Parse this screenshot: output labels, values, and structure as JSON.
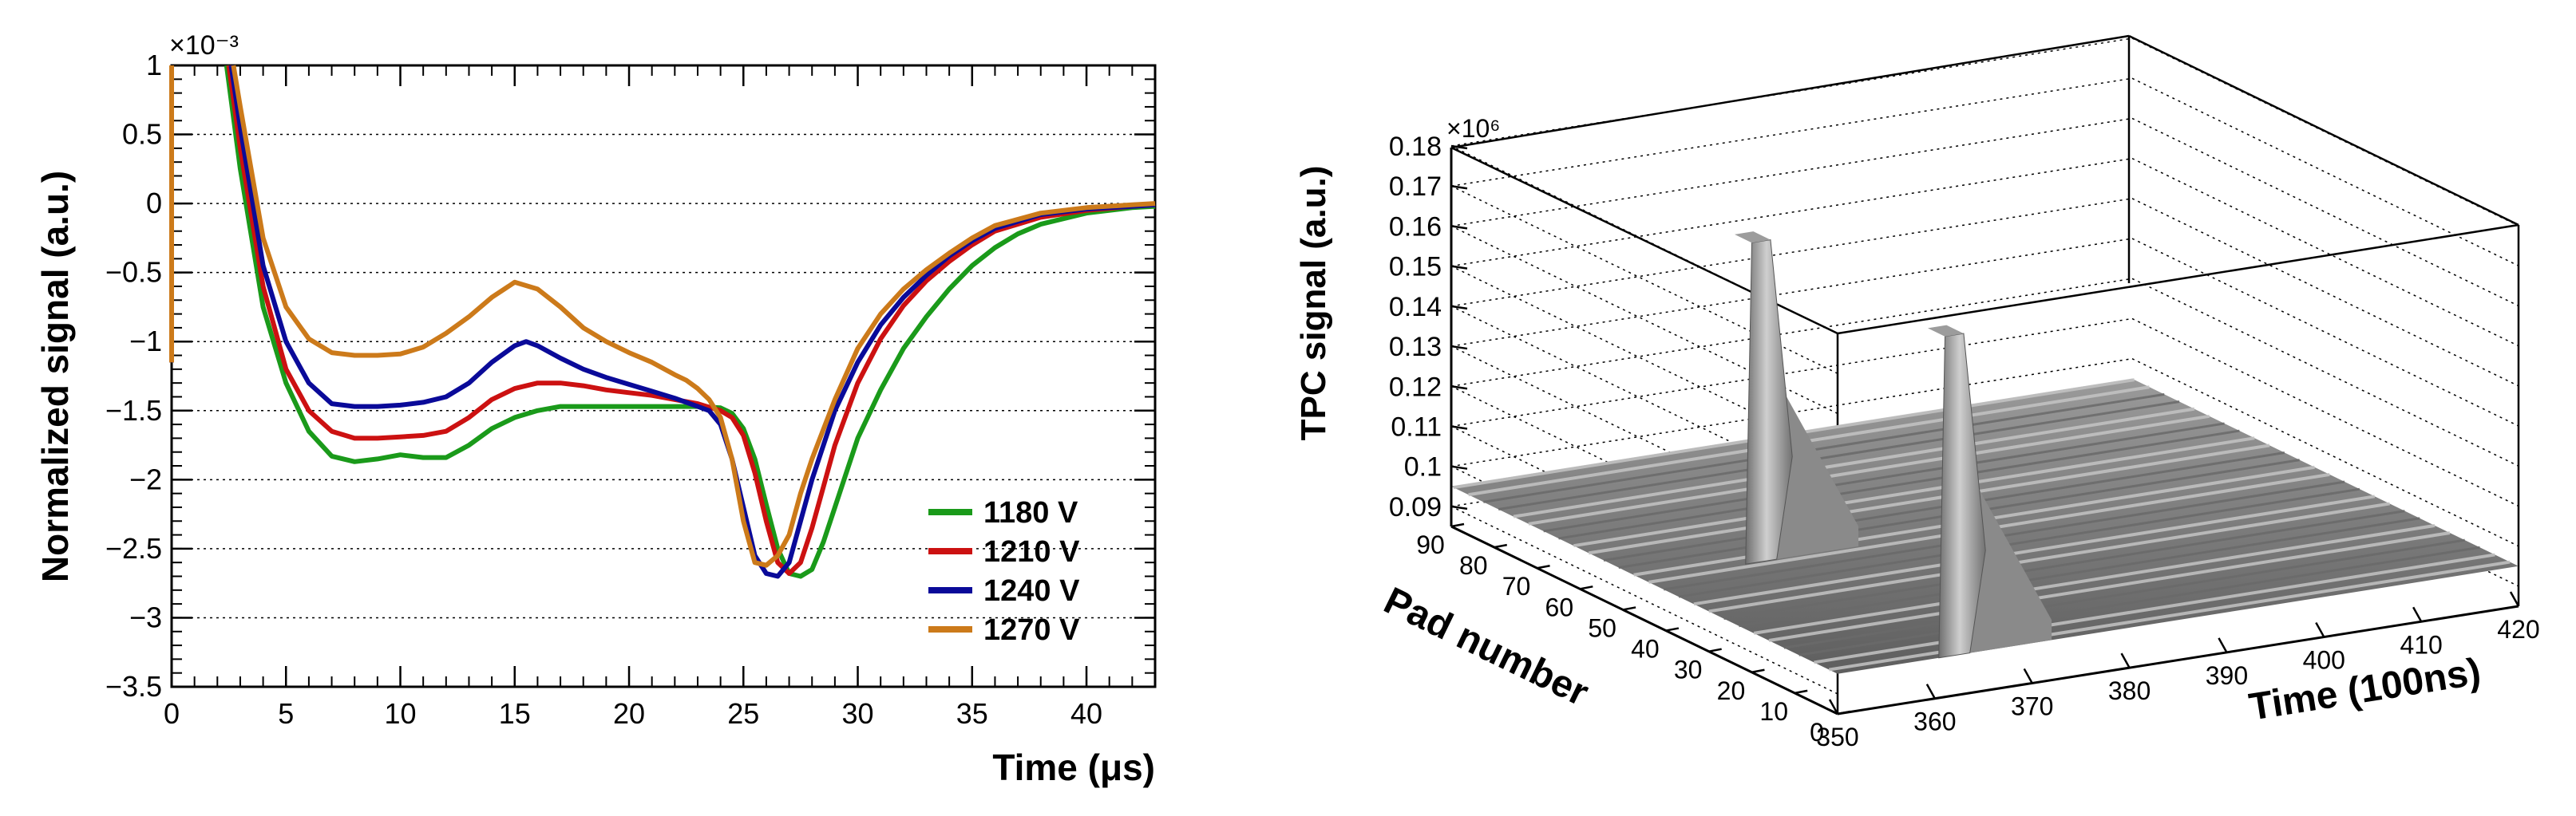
{
  "chart_data": [
    {
      "type": "line",
      "xlabel": "Time (μs)",
      "ylabel": "Normalized signal (a.u.)",
      "y_multiplier": "×10⁻³",
      "xlim": [
        0,
        43
      ],
      "ylim": [
        -3.5,
        1
      ],
      "x_ticks": [
        "0",
        "5",
        "10",
        "15",
        "20",
        "25",
        "30",
        "35",
        "40"
      ],
      "x_tick_values": [
        0,
        5,
        10,
        15,
        20,
        25,
        30,
        35,
        40
      ],
      "y_ticks": [
        "1",
        "0.5",
        "0",
        "−0.5",
        "−1",
        "−1.5",
        "−2",
        "−2.5",
        "−3",
        "−3.5"
      ],
      "y_tick_values": [
        1,
        0.5,
        0,
        -0.5,
        -1,
        -1.5,
        -2,
        -2.5,
        -3,
        -3.5
      ],
      "grid": "horizontal dotted",
      "legend_position": "bottom-right",
      "series": [
        {
          "name": "1180 V",
          "color": "#1a9a1a",
          "x": [
            2.4,
            3.0,
            4.0,
            5.0,
            6.0,
            7.0,
            8.0,
            9.0,
            10.0,
            11.0,
            12.0,
            13.0,
            14.0,
            15.0,
            16.0,
            17.0,
            18.0,
            19.0,
            20.0,
            21.0,
            22.0,
            23.0,
            24.0,
            24.5,
            25.0,
            25.5,
            26.0,
            26.5,
            27.0,
            27.5,
            28.0,
            28.5,
            29.0,
            29.5,
            30.0,
            31.0,
            32.0,
            33.0,
            34.0,
            35.0,
            36.0,
            37.0,
            38.0,
            40.0,
            42.0,
            43.0
          ],
          "y": [
            1.0,
            0.25,
            -0.75,
            -1.3,
            -1.65,
            -1.83,
            -1.87,
            -1.85,
            -1.82,
            -1.84,
            -1.84,
            -1.75,
            -1.63,
            -1.55,
            -1.5,
            -1.47,
            -1.47,
            -1.47,
            -1.47,
            -1.47,
            -1.47,
            -1.47,
            -1.48,
            -1.52,
            -1.63,
            -1.85,
            -2.18,
            -2.5,
            -2.68,
            -2.7,
            -2.65,
            -2.45,
            -2.2,
            -1.95,
            -1.7,
            -1.35,
            -1.05,
            -0.82,
            -0.62,
            -0.45,
            -0.32,
            -0.22,
            -0.15,
            -0.07,
            -0.03,
            -0.02
          ]
        },
        {
          "name": "1210 V",
          "color": "#cc1111",
          "x": [
            2.5,
            3.0,
            4.0,
            5.0,
            6.0,
            7.0,
            8.0,
            9.0,
            10.0,
            11.0,
            12.0,
            13.0,
            14.0,
            15.0,
            16.0,
            17.0,
            18.0,
            19.0,
            20.0,
            21.0,
            22.0,
            23.0,
            24.0,
            24.5,
            25.0,
            25.5,
            26.0,
            26.5,
            27.0,
            27.5,
            28.0,
            28.5,
            29.0,
            30.0,
            31.0,
            32.0,
            33.0,
            34.0,
            35.0,
            36.0,
            38.0,
            40.0,
            42.0,
            43.0
          ],
          "y": [
            1.0,
            0.4,
            -0.6,
            -1.2,
            -1.5,
            -1.65,
            -1.7,
            -1.7,
            -1.69,
            -1.68,
            -1.65,
            -1.55,
            -1.42,
            -1.34,
            -1.3,
            -1.3,
            -1.32,
            -1.35,
            -1.37,
            -1.39,
            -1.42,
            -1.45,
            -1.5,
            -1.55,
            -1.68,
            -1.95,
            -2.3,
            -2.6,
            -2.68,
            -2.6,
            -2.35,
            -2.05,
            -1.75,
            -1.3,
            -0.98,
            -0.74,
            -0.56,
            -0.42,
            -0.3,
            -0.2,
            -0.1,
            -0.05,
            -0.02,
            -0.01
          ]
        },
        {
          "name": "1240 V",
          "color": "#0a0a99",
          "x": [
            2.6,
            3.0,
            4.0,
            5.0,
            6.0,
            7.0,
            8.0,
            9.0,
            10.0,
            11.0,
            12.0,
            13.0,
            14.0,
            15.0,
            15.5,
            16.0,
            17.0,
            18.0,
            19.0,
            20.0,
            21.0,
            22.0,
            23.0,
            23.5,
            24.0,
            24.5,
            25.0,
            25.5,
            26.0,
            26.5,
            27.0,
            27.5,
            28.0,
            29.0,
            30.0,
            31.0,
            32.0,
            33.0,
            34.0,
            35.0,
            36.0,
            38.0,
            40.0,
            42.0,
            43.0
          ],
          "y": [
            1.0,
            0.55,
            -0.45,
            -1.0,
            -1.3,
            -1.45,
            -1.47,
            -1.47,
            -1.46,
            -1.44,
            -1.4,
            -1.3,
            -1.15,
            -1.03,
            -1.0,
            -1.03,
            -1.12,
            -1.2,
            -1.26,
            -1.31,
            -1.36,
            -1.41,
            -1.47,
            -1.5,
            -1.6,
            -1.85,
            -2.2,
            -2.55,
            -2.68,
            -2.7,
            -2.6,
            -2.3,
            -2.0,
            -1.5,
            -1.15,
            -0.88,
            -0.68,
            -0.52,
            -0.38,
            -0.27,
            -0.18,
            -0.08,
            -0.04,
            -0.02,
            -0.01
          ]
        },
        {
          "name": "1270 V",
          "color": "#cc7a1a",
          "x": [
            2.7,
            3.0,
            4.0,
            5.0,
            6.0,
            7.0,
            8.0,
            9.0,
            10.0,
            11.0,
            12.0,
            13.0,
            14.0,
            15.0,
            16.0,
            17.0,
            18.0,
            19.0,
            20.0,
            21.0,
            22.0,
            22.5,
            23.0,
            23.5,
            24.0,
            24.5,
            25.0,
            25.5,
            26.0,
            26.5,
            27.0,
            27.5,
            28.0,
            29.0,
            30.0,
            31.0,
            32.0,
            33.0,
            34.0,
            35.0,
            36.0,
            38.0,
            40.0,
            42.0,
            43.0
          ],
          "y": [
            1.0,
            0.7,
            -0.25,
            -0.75,
            -0.98,
            -1.08,
            -1.1,
            -1.1,
            -1.09,
            -1.04,
            -0.94,
            -0.82,
            -0.68,
            -0.57,
            -0.62,
            -0.75,
            -0.9,
            -1.0,
            -1.08,
            -1.15,
            -1.24,
            -1.28,
            -1.34,
            -1.42,
            -1.55,
            -1.85,
            -2.3,
            -2.6,
            -2.62,
            -2.55,
            -2.4,
            -2.1,
            -1.85,
            -1.42,
            -1.05,
            -0.8,
            -0.62,
            -0.48,
            -0.36,
            -0.25,
            -0.16,
            -0.07,
            -0.03,
            -0.01,
            0.0
          ]
        }
      ]
    },
    {
      "type": "surface",
      "xlabel": "Time (100ns)",
      "ylabel": "Pad number",
      "zlabel": "TPC signal (a.u.)",
      "z_multiplier": "×10⁶",
      "x_ticks": [
        "350",
        "360",
        "370",
        "380",
        "390",
        "400",
        "410",
        "420"
      ],
      "x_tick_values": [
        350,
        360,
        370,
        380,
        390,
        400,
        410,
        420
      ],
      "y_ticks": [
        "0",
        "10",
        "20",
        "30",
        "40",
        "50",
        "60",
        "70",
        "80",
        "90"
      ],
      "y_tick_values": [
        0,
        10,
        20,
        30,
        40,
        50,
        60,
        70,
        80,
        90
      ],
      "z_ticks": [
        "0.09",
        "0.1",
        "0.11",
        "0.12",
        "0.13",
        "0.14",
        "0.15",
        "0.16",
        "0.17",
        "0.18"
      ],
      "z_tick_values": [
        0.09,
        0.1,
        0.11,
        0.12,
        0.13,
        0.14,
        0.15,
        0.16,
        0.17,
        0.18
      ],
      "xlim": [
        350,
        420
      ],
      "ylim": [
        0,
        90
      ],
      "zlim": [
        0.085,
        0.18
      ],
      "grid": "dotted on back walls",
      "peaks": [
        {
          "time": 362,
          "pad_from": 0,
          "pad_to": 90,
          "height": 0.175
        },
        {
          "time": 362,
          "pad_from": 45,
          "pad_to": 90,
          "height": 0.175
        }
      ]
    }
  ]
}
